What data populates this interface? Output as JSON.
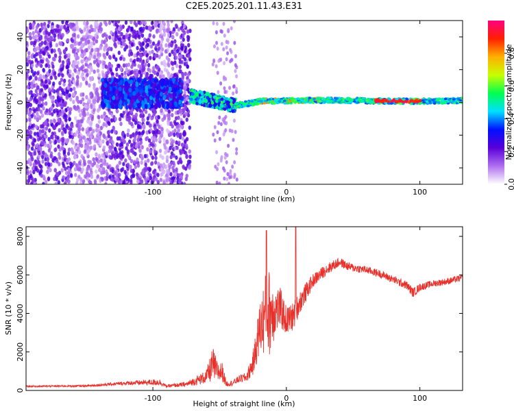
{
  "title": "C2E5.2025.201.11.43.E31",
  "colors": {
    "snr_line": "#e8312b",
    "axis": "#000000",
    "background": "#ffffff"
  },
  "chart_data": [
    {
      "type": "heatmap",
      "name": "spectrogram",
      "xlabel": "Height of straight line (km)",
      "ylabel": "Frequency (Hz)",
      "xlim": [
        -195,
        132
      ],
      "ylim": [
        -50,
        50
      ],
      "xticks": [
        "-100",
        "0",
        "100"
      ],
      "yticks": [
        "40",
        "20",
        "0",
        "-20",
        "-40"
      ],
      "colorbar": {
        "label": "Normalized spectral amplitude",
        "range": [
          0,
          1
        ],
        "ticks": [
          "0.0",
          "0.2",
          "0.4",
          "0.6",
          "0.8"
        ],
        "colormap": [
          "#ffffff",
          "#b070f0",
          "#5a00d8",
          "#0010ff",
          "#00e0ff",
          "#00ff50",
          "#c8ff00",
          "#ffb000",
          "#ff2000",
          "#ff0080"
        ]
      },
      "bands": [
        {
          "x": [
            -195,
            -75
          ],
          "freq": [
            -50,
            50
          ],
          "amplitude": 0.15,
          "note": "scattered noise"
        },
        {
          "x": [
            -138,
            -78
          ],
          "freq": [
            -3,
            14
          ],
          "amplitude": 0.3
        },
        {
          "x": [
            -72,
            -38
          ],
          "freq": [
            -3,
            8
          ],
          "amplitude": 0.5
        },
        {
          "x": [
            -38,
            132
          ],
          "freq": [
            -1,
            3
          ],
          "amplitude": 0.6
        },
        {
          "x": [
            70,
            100
          ],
          "freq": [
            0,
            2
          ],
          "amplitude": 0.95
        }
      ]
    },
    {
      "type": "line",
      "name": "snr",
      "xlabel": "Height of straight line (km)",
      "ylabel": "SNR (10 * v/v)",
      "xlim": [
        -195,
        132
      ],
      "ylim": [
        0,
        8500
      ],
      "xticks": [
        "-100",
        "0",
        "100"
      ],
      "yticks": [
        "0",
        "2000",
        "4000",
        "6000",
        "8000"
      ],
      "envelope": {
        "x": [
          -195,
          -150,
          -120,
          -95,
          -90,
          -75,
          -60,
          -55,
          -52,
          -48,
          -45,
          -40,
          -35,
          -30,
          -25,
          -20,
          -15,
          -12,
          -8,
          -5,
          0,
          5,
          10,
          20,
          30,
          40,
          45,
          50,
          60,
          70,
          80,
          90,
          95,
          100,
          110,
          120,
          132
        ],
        "base": [
          200,
          220,
          350,
          380,
          200,
          280,
          600,
          1100,
          800,
          800,
          300,
          350,
          550,
          600,
          1200,
          2800,
          3400,
          3400,
          3800,
          4000,
          3400,
          3600,
          4400,
          5600,
          6200,
          6600,
          6400,
          6300,
          6200,
          6000,
          5700,
          5400,
          5000,
          5300,
          5500,
          5600,
          5800
        ],
        "amp": [
          80,
          100,
          200,
          350,
          150,
          250,
          700,
          1800,
          1200,
          1000,
          300,
          300,
          400,
          500,
          1200,
          2800,
          4500,
          4500,
          2500,
          2200,
          1500,
          1500,
          1200,
          700,
          600,
          500,
          450,
          450,
          400,
          400,
          400,
          450,
          500,
          400,
          350,
          350,
          350
        ]
      },
      "peaks": [
        {
          "x": -15,
          "y": 8300
        },
        {
          "x": 7,
          "y": 8500
        }
      ]
    }
  ]
}
